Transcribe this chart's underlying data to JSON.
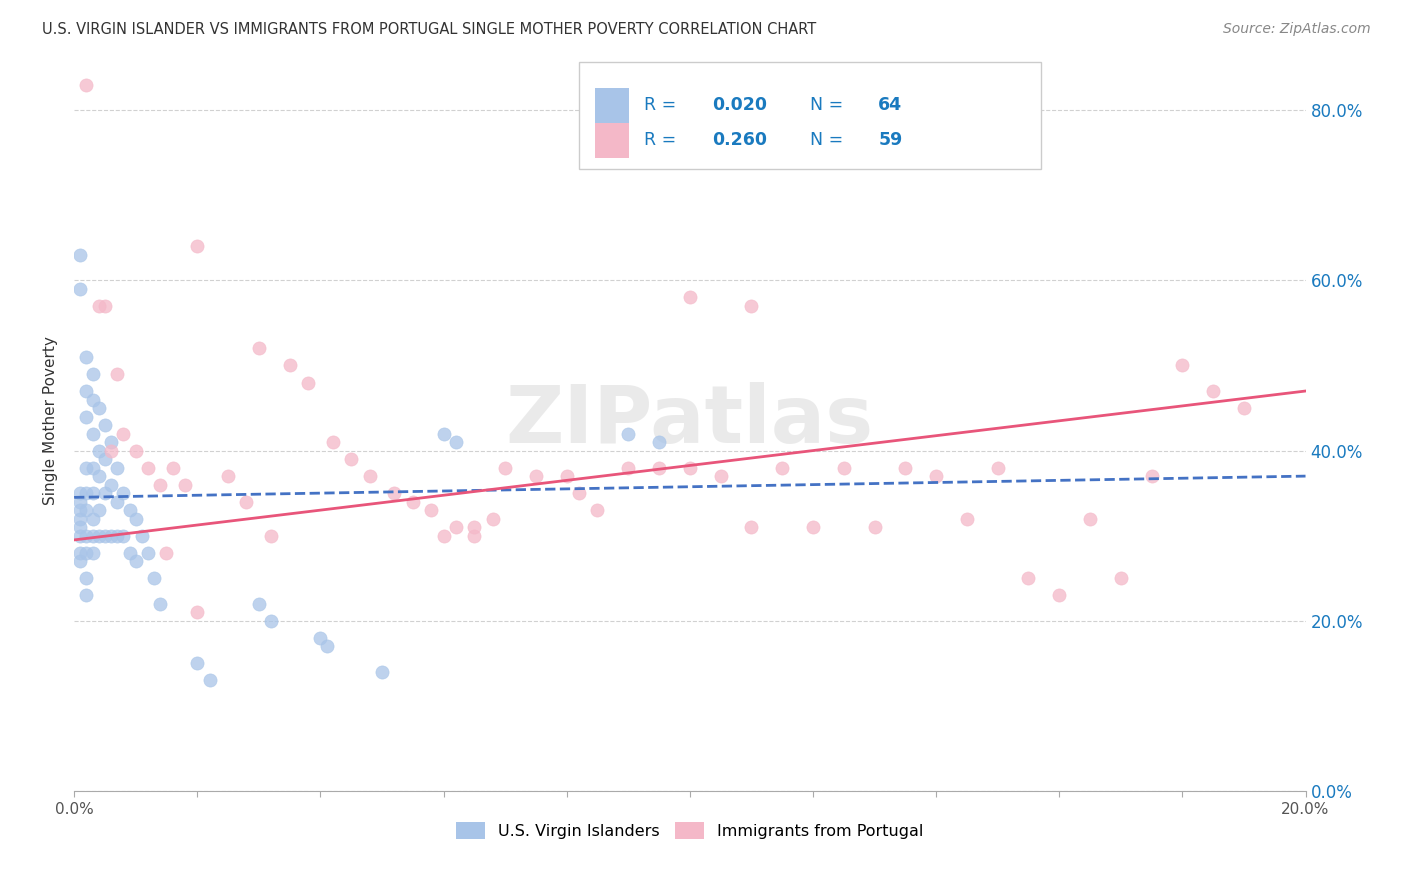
{
  "title": "U.S. VIRGIN ISLANDER VS IMMIGRANTS FROM PORTUGAL SINGLE MOTHER POVERTY CORRELATION CHART",
  "source": "Source: ZipAtlas.com",
  "ylabel": "Single Mother Poverty",
  "group1_color": "#a8c4e8",
  "group2_color": "#f4b8c8",
  "group1_label": "U.S. Virgin Islanders",
  "group2_label": "Immigrants from Portugal",
  "group1_R": 0.02,
  "group1_N": 64,
  "group2_R": 0.26,
  "group2_N": 59,
  "legend_color": "#1a7abf",
  "trend1_color": "#4472c4",
  "trend2_color": "#e8557a",
  "watermark": "ZIPatlas",
  "background_color": "#ffffff",
  "grid_color": "#cccccc",
  "title_color": "#333333",
  "xlim": [
    0.0,
    0.2
  ],
  "ylim": [
    0.0,
    0.87
  ],
  "yticks": [
    0.0,
    0.2,
    0.4,
    0.6,
    0.8
  ],
  "xtick_positions": [
    0.0,
    0.02,
    0.04,
    0.06,
    0.08,
    0.1,
    0.12,
    0.14,
    0.16,
    0.18,
    0.2
  ],
  "trend1_x0": 0.0,
  "trend1_x1": 0.2,
  "trend1_y0": 0.345,
  "trend1_y1": 0.37,
  "trend2_x0": 0.0,
  "trend2_x1": 0.2,
  "trend2_y0": 0.295,
  "trend2_y1": 0.47,
  "group1_x": [
    0.001,
    0.001,
    0.001,
    0.001,
    0.001,
    0.001,
    0.001,
    0.001,
    0.001,
    0.001,
    0.002,
    0.002,
    0.002,
    0.002,
    0.002,
    0.002,
    0.002,
    0.002,
    0.002,
    0.002,
    0.003,
    0.003,
    0.003,
    0.003,
    0.003,
    0.003,
    0.003,
    0.003,
    0.004,
    0.004,
    0.004,
    0.004,
    0.004,
    0.005,
    0.005,
    0.005,
    0.005,
    0.006,
    0.006,
    0.006,
    0.007,
    0.007,
    0.007,
    0.008,
    0.008,
    0.009,
    0.009,
    0.01,
    0.01,
    0.011,
    0.012,
    0.013,
    0.014,
    0.02,
    0.022,
    0.03,
    0.032,
    0.04,
    0.041,
    0.05,
    0.06,
    0.062,
    0.09,
    0.095
  ],
  "group1_y": [
    0.63,
    0.59,
    0.35,
    0.34,
    0.33,
    0.32,
    0.31,
    0.3,
    0.28,
    0.27,
    0.51,
    0.47,
    0.44,
    0.38,
    0.35,
    0.33,
    0.3,
    0.28,
    0.25,
    0.23,
    0.49,
    0.46,
    0.42,
    0.38,
    0.35,
    0.32,
    0.3,
    0.28,
    0.45,
    0.4,
    0.37,
    0.33,
    0.3,
    0.43,
    0.39,
    0.35,
    0.3,
    0.41,
    0.36,
    0.3,
    0.38,
    0.34,
    0.3,
    0.35,
    0.3,
    0.33,
    0.28,
    0.32,
    0.27,
    0.3,
    0.28,
    0.25,
    0.22,
    0.15,
    0.13,
    0.22,
    0.2,
    0.18,
    0.17,
    0.14,
    0.42,
    0.41,
    0.42,
    0.41
  ],
  "group2_x": [
    0.02,
    0.03,
    0.035,
    0.038,
    0.042,
    0.045,
    0.048,
    0.052,
    0.055,
    0.058,
    0.062,
    0.065,
    0.068,
    0.07,
    0.075,
    0.08,
    0.082,
    0.085,
    0.09,
    0.095,
    0.1,
    0.105,
    0.11,
    0.115,
    0.12,
    0.125,
    0.13,
    0.135,
    0.14,
    0.145,
    0.15,
    0.155,
    0.16,
    0.165,
    0.17,
    0.175,
    0.18,
    0.185,
    0.19,
    0.005,
    0.007,
    0.008,
    0.01,
    0.012,
    0.014,
    0.016,
    0.018,
    0.025,
    0.028,
    0.032,
    0.06,
    0.065,
    0.1,
    0.11,
    0.002,
    0.004,
    0.006,
    0.015,
    0.02
  ],
  "group2_y": [
    0.64,
    0.52,
    0.5,
    0.48,
    0.41,
    0.39,
    0.37,
    0.35,
    0.34,
    0.33,
    0.31,
    0.3,
    0.32,
    0.38,
    0.37,
    0.37,
    0.35,
    0.33,
    0.38,
    0.38,
    0.38,
    0.37,
    0.57,
    0.38,
    0.31,
    0.38,
    0.31,
    0.38,
    0.37,
    0.32,
    0.38,
    0.25,
    0.23,
    0.32,
    0.25,
    0.37,
    0.5,
    0.47,
    0.45,
    0.57,
    0.49,
    0.42,
    0.4,
    0.38,
    0.36,
    0.38,
    0.36,
    0.37,
    0.34,
    0.3,
    0.3,
    0.31,
    0.58,
    0.31,
    0.83,
    0.57,
    0.4,
    0.28,
    0.21
  ]
}
